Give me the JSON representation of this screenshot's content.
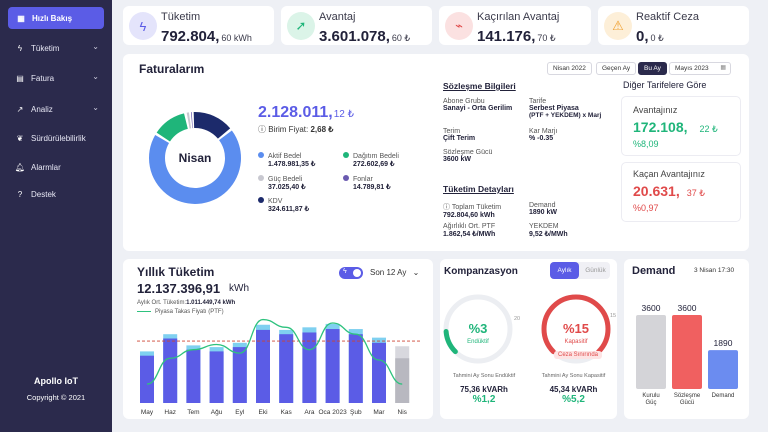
{
  "sidebar": {
    "active": "Hızlı Bakış",
    "items": [
      {
        "label": "Tüketim",
        "chevron": true
      },
      {
        "label": "Fatura",
        "chevron": true
      },
      {
        "label": "Analiz",
        "chevron": true
      },
      {
        "label": "Sürdürülebilirlik",
        "chevron": false
      },
      {
        "label": "Alarmlar",
        "chevron": false
      },
      {
        "label": "Destek",
        "chevron": false
      }
    ],
    "brand": "Apollo IoT",
    "copyright": "Copyright © 2021"
  },
  "kpis": [
    {
      "label": "Tüketim",
      "value": "792.804,",
      "decimals": "60 kWh",
      "icon": "bolt-icon",
      "color": "#5b5ce6"
    },
    {
      "label": "Avantaj",
      "value": "3.601.078,",
      "decimals": "60 ₺",
      "icon": "rocket-icon",
      "color": "#1fb57a"
    },
    {
      "label": "Kaçırılan Avantaj",
      "value": "141.176,",
      "decimals": "70 ₺",
      "icon": "plug-icon",
      "color": "#e04a4a"
    },
    {
      "label": "Reaktif Ceza",
      "value": "0,",
      "decimals": "0 ₺",
      "icon": "warning-icon",
      "color": "#f0a030"
    }
  ],
  "invoices": {
    "title": "Faturalarım",
    "periods": [
      "Nisan 2022",
      "Geçen Ay",
      "Bu Ay",
      "Mayıs 2023"
    ],
    "active_period": "Bu Ay",
    "donut_center": "Nisan",
    "total": "2.128.011,",
    "total_dec": "12 ₺",
    "unit_price_label": "Birim Fiyat:",
    "unit_price": "2,68 ₺",
    "legend": [
      {
        "name": "Aktif Bedel",
        "value": "1.478.981,35 ₺",
        "color": "#5b8def"
      },
      {
        "name": "Dağıtım Bedeli",
        "value": "272.602,69 ₺",
        "color": "#1fb57a"
      },
      {
        "name": "Güç Bedeli",
        "value": "37.025,40 ₺",
        "color": "#c8c8d0"
      },
      {
        "name": "Fonlar",
        "value": "14.789,81 ₺",
        "color": "#6a5ab0"
      },
      {
        "name": "KDV",
        "value": "324.611,87 ₺",
        "color": "#1c2a6b"
      }
    ],
    "donut_slices": [
      1478981.35,
      272602.69,
      37025.4,
      14789.81,
      324611.87
    ]
  },
  "contract": {
    "title": "Sözleşme Bilgileri",
    "abone_label": "Abone Grubu",
    "abone_value": "Sanayi - Orta Gerilim",
    "tarife_label": "Tarife",
    "tarife_value": "Serbest Piyasa",
    "tarife_sub": "(PTF + YEKDEM) x Marj",
    "terim_label": "Terim",
    "terim_value": "Çift Terim",
    "kar_label": "Kar Marjı",
    "kar_value": "% -0.35",
    "guc_label": "Sözleşme Gücü",
    "guc_value": "3600 kW"
  },
  "details": {
    "title": "Tüketim Detayları",
    "toplam_label": "Toplam Tüketim",
    "toplam_value": "792.804,60 kWh",
    "demand_label": "Demand",
    "demand_value": "1890 kW",
    "ptf_label": "Ağırlıklı Ort. PTF",
    "ptf_value": "1.862,54 ₺/MWh",
    "yekdem_label": "YEKDEM",
    "yekdem_value": "9,52 ₺/MWh"
  },
  "tariffs": {
    "title": "Diğer Tarifelere Göre",
    "adv_label": "Avantajınız",
    "adv_value": "172.108,",
    "adv_dec": "22 ₺",
    "adv_pct": "%8,09",
    "miss_label": "Kaçan Avantajınız",
    "miss_value": "20.631,",
    "miss_dec": "37 ₺",
    "miss_pct": "%0,97"
  },
  "yearly": {
    "title": "Yıllık Tüketim",
    "range": "Son 12 Ay",
    "total": "12.137.396,91",
    "unit": "kWh",
    "avg_label": "Aylık Ort. Tüketim:",
    "avg_value": "1.011.449,74 kWh",
    "ptf_legend": "Piyasa Takas Fiyatı (PTF)"
  },
  "chart_data": {
    "type": "bar",
    "categories": [
      "May",
      "Haz",
      "Tem",
      "Ağu",
      "Eyl",
      "Eki",
      "Kas",
      "Ara",
      "Oca 2023",
      "Şub",
      "Mar",
      "Nis"
    ],
    "series": [
      {
        "values": [
          0.55,
          0.75,
          0.62,
          0.6,
          0.65,
          0.85,
          0.8,
          0.82,
          0.86,
          0.8,
          0.7,
          0.52
        ]
      },
      {
        "values": [
          0.6,
          0.8,
          0.67,
          0.65,
          0.7,
          0.91,
          0.85,
          0.88,
          0.92,
          0.86,
          0.76,
          0.66
        ]
      },
      {
        "name": "Piyasa Takas Fiyatı (PTF)",
        "values": [
          0.22,
          0.52,
          0.62,
          0.68,
          0.58,
          0.97,
          0.88,
          0.62,
          0.93,
          0.8,
          0.5,
          0.22
        ]
      }
    ],
    "avg_line": 0.72,
    "colors": [
      "#5b5ce6",
      "#7fd0f0",
      "#2ec27e"
    ]
  },
  "compensation": {
    "title": "Kompanzasyon",
    "tabs": [
      "Aylık",
      "Günlük"
    ],
    "active_tab": "Aylık",
    "gauges": [
      {
        "value": "%3",
        "label": "Endüktif",
        "max": "20",
        "ratio": 0.15,
        "color": "#1fb57a"
      },
      {
        "value": "%15",
        "label": "Kapasitif",
        "max": "15",
        "ratio": 1.0,
        "color": "#e04a4a",
        "badge": "Ceza Sınırında"
      }
    ],
    "endo_est_label": "Tahmini Ay Sonu Endüktif",
    "endo_est_value": "75,36 kVARh",
    "endo_est_pct": "%1,2",
    "kapa_est_label": "Tahmini Ay Sonu Kapasitif",
    "kapa_est_value": "45,34 kVARh",
    "kapa_est_pct": "%5,2"
  },
  "demand": {
    "title": "Demand",
    "date": "3 Nisan 17:30",
    "bars": [
      {
        "label": "Kurulu Güç",
        "value": 3600,
        "color": "#d4d4d8"
      },
      {
        "label": "Sözleşme Gücü",
        "value": 3600,
        "color": "#f06060"
      },
      {
        "label": "Demand",
        "value": 1890,
        "color": "#6b8cf0"
      }
    ],
    "max": 3600
  }
}
